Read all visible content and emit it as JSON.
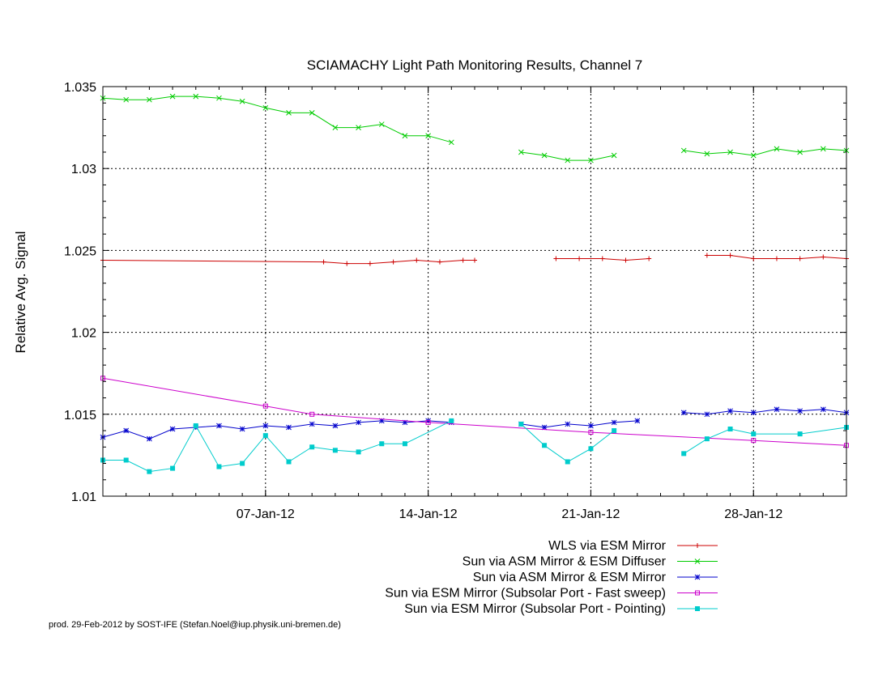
{
  "chart_data": {
    "type": "line",
    "title": "SCIAMACHY Light Path Monitoring Results, Channel 7",
    "xlabel": "",
    "ylabel": "Relative Avg. Signal",
    "x_axis": {
      "type": "date",
      "range": [
        "2011-12-31",
        "2012-02-01"
      ]
    },
    "ylim": [
      1.01,
      1.035
    ],
    "yticks": [
      "1.01",
      "1.015",
      "1.02",
      "1.025",
      "1.03",
      "1.035"
    ],
    "xticks": [
      {
        "date": "2012-01-07",
        "label": "07-Jan-12"
      },
      {
        "date": "2012-01-14",
        "label": "14-Jan-12"
      },
      {
        "date": "2012-01-21",
        "label": "21-Jan-12"
      },
      {
        "date": "2012-01-28",
        "label": "28-Jan-12"
      }
    ],
    "grid": true,
    "legend_position": "bottom-right",
    "series": [
      {
        "name": "WLS via ESM Mirror",
        "color": "#cc0000",
        "marker": "plus",
        "points": [
          [
            "2011-12-31",
            1.0244
          ],
          [
            "2012-01-09 12:00",
            1.0243
          ],
          [
            "2012-01-10 12:00",
            1.0242
          ],
          [
            "2012-01-11 12:00",
            1.0242
          ],
          [
            "2012-01-12 12:00",
            1.0243
          ],
          [
            "2012-01-13 12:00",
            1.0244
          ],
          [
            "2012-01-14 12:00",
            1.0243
          ],
          [
            "2012-01-15 12:00",
            1.0244
          ],
          [
            "2012-01-16",
            1.0244
          ],
          null,
          [
            "2012-01-19 12:00",
            1.0245
          ],
          [
            "2012-01-20 12:00",
            1.0245
          ],
          [
            "2012-01-21 12:00",
            1.0245
          ],
          [
            "2012-01-22 12:00",
            1.0244
          ],
          [
            "2012-01-23 12:00",
            1.0245
          ],
          null,
          [
            "2012-01-26",
            1.0247
          ],
          [
            "2012-01-27",
            1.0247
          ],
          [
            "2012-01-28",
            1.0245
          ],
          [
            "2012-01-29",
            1.0245
          ],
          [
            "2012-01-30",
            1.0245
          ],
          [
            "2012-01-31",
            1.0246
          ],
          [
            "2012-02-01",
            1.0245
          ]
        ]
      },
      {
        "name": "Sun via ASM Mirror & ESM Diffuser",
        "color": "#00cc00",
        "marker": "cross",
        "points": [
          [
            "2011-12-31",
            1.0343
          ],
          [
            "2012-01-01",
            1.0342
          ],
          [
            "2012-01-02",
            1.0342
          ],
          [
            "2012-01-03",
            1.0344
          ],
          [
            "2012-01-04",
            1.0344
          ],
          [
            "2012-01-05",
            1.0343
          ],
          [
            "2012-01-06",
            1.0341
          ],
          [
            "2012-01-07",
            1.0337
          ],
          [
            "2012-01-08",
            1.0334
          ],
          [
            "2012-01-09",
            1.0334
          ],
          [
            "2012-01-10",
            1.0325
          ],
          [
            "2012-01-11",
            1.0325
          ],
          [
            "2012-01-12",
            1.0327
          ],
          [
            "2012-01-13",
            1.032
          ],
          [
            "2012-01-14",
            1.032
          ],
          [
            "2012-01-15",
            1.0316
          ],
          null,
          [
            "2012-01-18",
            1.031
          ],
          [
            "2012-01-19",
            1.0308
          ],
          [
            "2012-01-20",
            1.0305
          ],
          [
            "2012-01-21",
            1.0305
          ],
          [
            "2012-01-22",
            1.0308
          ],
          null,
          [
            "2012-01-25",
            1.0311
          ],
          [
            "2012-01-26",
            1.0309
          ],
          [
            "2012-01-27",
            1.031
          ],
          [
            "2012-01-28",
            1.0308
          ],
          [
            "2012-01-29",
            1.0312
          ],
          [
            "2012-01-30",
            1.031
          ],
          [
            "2012-01-31",
            1.0312
          ],
          [
            "2012-02-01",
            1.0311
          ]
        ]
      },
      {
        "name": "Sun via ASM Mirror & ESM Mirror",
        "color": "#0000cc",
        "marker": "star",
        "points": [
          [
            "2011-12-31",
            1.0136
          ],
          [
            "2012-01-01",
            1.014
          ],
          [
            "2012-01-02",
            1.0135
          ],
          [
            "2012-01-03",
            1.0141
          ],
          [
            "2012-01-04",
            1.0142
          ],
          [
            "2012-01-05",
            1.0143
          ],
          [
            "2012-01-06",
            1.0141
          ],
          [
            "2012-01-07",
            1.0143
          ],
          [
            "2012-01-08",
            1.0142
          ],
          [
            "2012-01-09",
            1.0144
          ],
          [
            "2012-01-10",
            1.0143
          ],
          [
            "2012-01-11",
            1.0145
          ],
          [
            "2012-01-12",
            1.0146
          ],
          [
            "2012-01-13",
            1.0145
          ],
          [
            "2012-01-14",
            1.0146
          ],
          [
            "2012-01-15",
            1.0145
          ],
          null,
          [
            "2012-01-18",
            1.0144
          ],
          [
            "2012-01-19",
            1.0142
          ],
          [
            "2012-01-20",
            1.0144
          ],
          [
            "2012-01-21",
            1.0143
          ],
          [
            "2012-01-22",
            1.0145
          ],
          [
            "2012-01-23",
            1.0146
          ],
          null,
          [
            "2012-01-25",
            1.0151
          ],
          [
            "2012-01-26",
            1.015
          ],
          [
            "2012-01-27",
            1.0152
          ],
          [
            "2012-01-28",
            1.0151
          ],
          [
            "2012-01-29",
            1.0153
          ],
          [
            "2012-01-30",
            1.0152
          ],
          [
            "2012-01-31",
            1.0153
          ],
          [
            "2012-02-01",
            1.0151
          ]
        ]
      },
      {
        "name": "Sun via ESM Mirror (Subsolar Port - Fast sweep)",
        "color": "#cc00cc",
        "marker": "open-square",
        "points": [
          [
            "2011-12-31",
            1.0172
          ],
          [
            "2012-01-07",
            1.0155
          ],
          [
            "2012-01-09",
            1.015
          ],
          [
            "2012-01-14",
            1.0145
          ],
          [
            "2012-01-21",
            1.0139
          ],
          [
            "2012-01-28",
            1.0134
          ],
          [
            "2012-02-01",
            1.0131
          ]
        ]
      },
      {
        "name": "Sun via ESM Mirror (Subsolar Port - Pointing)",
        "color": "#00cccc",
        "marker": "filled-square",
        "points": [
          [
            "2011-12-31",
            1.0122
          ],
          [
            "2012-01-01",
            1.0122
          ],
          [
            "2012-01-02",
            1.0115
          ],
          [
            "2012-01-03",
            1.0117
          ],
          [
            "2012-01-04",
            1.0143
          ],
          [
            "2012-01-05",
            1.0118
          ],
          [
            "2012-01-06",
            1.012
          ],
          [
            "2012-01-07",
            1.0137
          ],
          [
            "2012-01-08",
            1.0121
          ],
          [
            "2012-01-09",
            1.013
          ],
          [
            "2012-01-10",
            1.0128
          ],
          [
            "2012-01-11",
            1.0127
          ],
          [
            "2012-01-12",
            1.0132
          ],
          [
            "2012-01-13",
            1.0132
          ],
          [
            "2012-01-15",
            1.0146
          ],
          null,
          [
            "2012-01-18",
            1.0144
          ],
          [
            "2012-01-19",
            1.0131
          ],
          [
            "2012-01-20",
            1.0121
          ],
          [
            "2012-01-21",
            1.0129
          ],
          [
            "2012-01-22",
            1.014
          ],
          null,
          [
            "2012-01-25",
            1.0126
          ],
          [
            "2012-01-26",
            1.0135
          ],
          [
            "2012-01-27",
            1.0141
          ],
          [
            "2012-01-28",
            1.0138
          ],
          [
            "2012-01-30",
            1.0138
          ],
          [
            "2012-02-01",
            1.0142
          ]
        ]
      }
    ]
  },
  "footer": {
    "credit": "prod. 29-Feb-2012 by SOST-IFE (Stefan.Noel@iup.physik.uni-bremen.de)"
  }
}
